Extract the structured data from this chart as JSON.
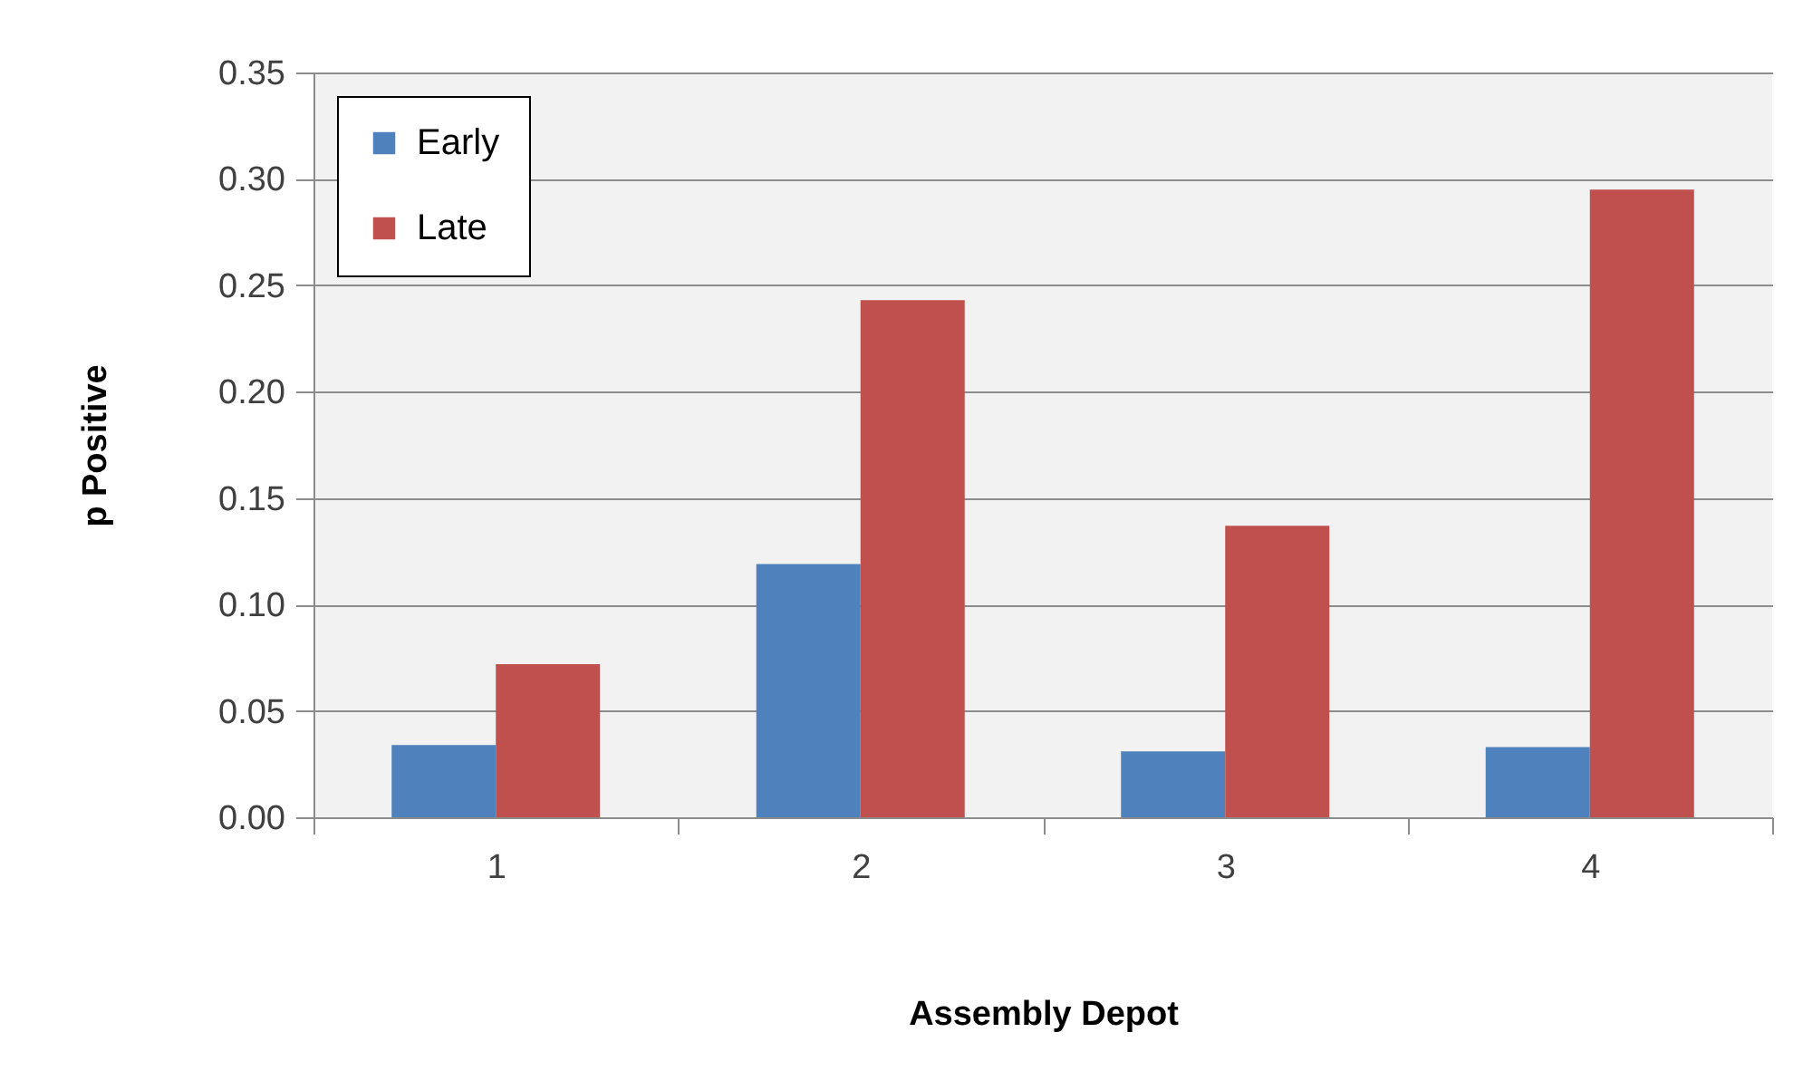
{
  "chart_data": {
    "type": "bar",
    "xlabel": "Assembly Depot",
    "ylabel": "p Positive",
    "categories": [
      "1",
      "2",
      "3",
      "4"
    ],
    "series": [
      {
        "name": "Early",
        "color": "#4f81bd",
        "values": [
          0.034,
          0.119,
          0.031,
          0.033
        ]
      },
      {
        "name": "Late",
        "color": "#c0504d",
        "values": [
          0.072,
          0.243,
          0.137,
          0.295
        ]
      }
    ],
    "ylim": [
      0,
      0.35
    ],
    "yticks": [
      {
        "value": 0,
        "label": "0.00"
      },
      0.05,
      {
        "value": 0.1,
        "label": "0.10"
      },
      0.15,
      {
        "value": 0.2,
        "label": "0.20"
      },
      0.25,
      {
        "value": 0.3,
        "label": "0.30"
      },
      0.35
    ],
    "grid": "y",
    "legend": "top left"
  }
}
